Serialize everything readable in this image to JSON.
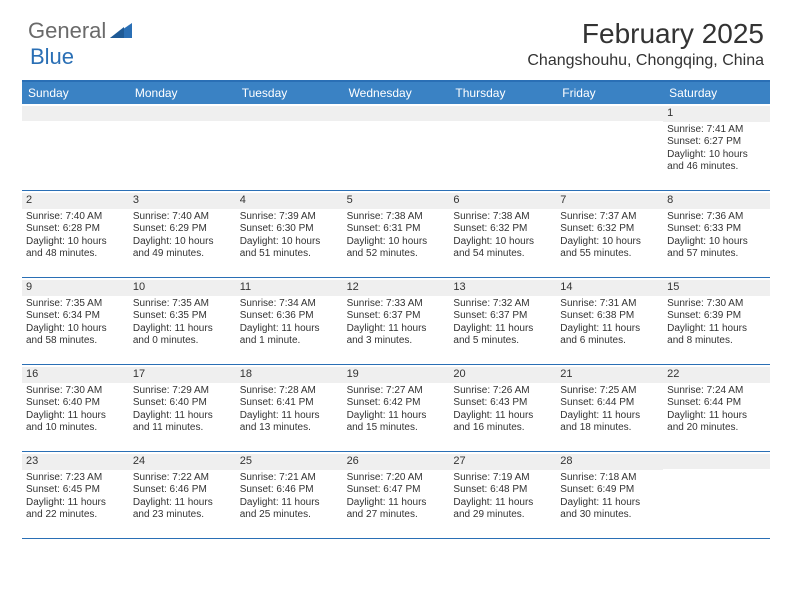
{
  "logo": {
    "part1": "General",
    "part2": "Blue"
  },
  "title": "February 2025",
  "location": "Changshouhu, Chongqing, China",
  "colors": {
    "header_bar": "#3a82c4",
    "rule": "#2a6fb5",
    "daynum_bg": "#efefef",
    "text": "#333333",
    "logo_gray": "#6a6a6a",
    "logo_blue": "#2a6fb5",
    "background": "#ffffff"
  },
  "typography": {
    "title_fontsize": 28,
    "location_fontsize": 16,
    "dow_fontsize": 12,
    "body_fontsize": 10
  },
  "days_of_week": [
    "Sunday",
    "Monday",
    "Tuesday",
    "Wednesday",
    "Thursday",
    "Friday",
    "Saturday"
  ],
  "weeks": [
    [
      {
        "n": "",
        "sr": "",
        "ss": "",
        "dl": ""
      },
      {
        "n": "",
        "sr": "",
        "ss": "",
        "dl": ""
      },
      {
        "n": "",
        "sr": "",
        "ss": "",
        "dl": ""
      },
      {
        "n": "",
        "sr": "",
        "ss": "",
        "dl": ""
      },
      {
        "n": "",
        "sr": "",
        "ss": "",
        "dl": ""
      },
      {
        "n": "",
        "sr": "",
        "ss": "",
        "dl": ""
      },
      {
        "n": "1",
        "sr": "Sunrise: 7:41 AM",
        "ss": "Sunset: 6:27 PM",
        "dl": "Daylight: 10 hours and 46 minutes."
      }
    ],
    [
      {
        "n": "2",
        "sr": "Sunrise: 7:40 AM",
        "ss": "Sunset: 6:28 PM",
        "dl": "Daylight: 10 hours and 48 minutes."
      },
      {
        "n": "3",
        "sr": "Sunrise: 7:40 AM",
        "ss": "Sunset: 6:29 PM",
        "dl": "Daylight: 10 hours and 49 minutes."
      },
      {
        "n": "4",
        "sr": "Sunrise: 7:39 AM",
        "ss": "Sunset: 6:30 PM",
        "dl": "Daylight: 10 hours and 51 minutes."
      },
      {
        "n": "5",
        "sr": "Sunrise: 7:38 AM",
        "ss": "Sunset: 6:31 PM",
        "dl": "Daylight: 10 hours and 52 minutes."
      },
      {
        "n": "6",
        "sr": "Sunrise: 7:38 AM",
        "ss": "Sunset: 6:32 PM",
        "dl": "Daylight: 10 hours and 54 minutes."
      },
      {
        "n": "7",
        "sr": "Sunrise: 7:37 AM",
        "ss": "Sunset: 6:32 PM",
        "dl": "Daylight: 10 hours and 55 minutes."
      },
      {
        "n": "8",
        "sr": "Sunrise: 7:36 AM",
        "ss": "Sunset: 6:33 PM",
        "dl": "Daylight: 10 hours and 57 minutes."
      }
    ],
    [
      {
        "n": "9",
        "sr": "Sunrise: 7:35 AM",
        "ss": "Sunset: 6:34 PM",
        "dl": "Daylight: 10 hours and 58 minutes."
      },
      {
        "n": "10",
        "sr": "Sunrise: 7:35 AM",
        "ss": "Sunset: 6:35 PM",
        "dl": "Daylight: 11 hours and 0 minutes."
      },
      {
        "n": "11",
        "sr": "Sunrise: 7:34 AM",
        "ss": "Sunset: 6:36 PM",
        "dl": "Daylight: 11 hours and 1 minute."
      },
      {
        "n": "12",
        "sr": "Sunrise: 7:33 AM",
        "ss": "Sunset: 6:37 PM",
        "dl": "Daylight: 11 hours and 3 minutes."
      },
      {
        "n": "13",
        "sr": "Sunrise: 7:32 AM",
        "ss": "Sunset: 6:37 PM",
        "dl": "Daylight: 11 hours and 5 minutes."
      },
      {
        "n": "14",
        "sr": "Sunrise: 7:31 AM",
        "ss": "Sunset: 6:38 PM",
        "dl": "Daylight: 11 hours and 6 minutes."
      },
      {
        "n": "15",
        "sr": "Sunrise: 7:30 AM",
        "ss": "Sunset: 6:39 PM",
        "dl": "Daylight: 11 hours and 8 minutes."
      }
    ],
    [
      {
        "n": "16",
        "sr": "Sunrise: 7:30 AM",
        "ss": "Sunset: 6:40 PM",
        "dl": "Daylight: 11 hours and 10 minutes."
      },
      {
        "n": "17",
        "sr": "Sunrise: 7:29 AM",
        "ss": "Sunset: 6:40 PM",
        "dl": "Daylight: 11 hours and 11 minutes."
      },
      {
        "n": "18",
        "sr": "Sunrise: 7:28 AM",
        "ss": "Sunset: 6:41 PM",
        "dl": "Daylight: 11 hours and 13 minutes."
      },
      {
        "n": "19",
        "sr": "Sunrise: 7:27 AM",
        "ss": "Sunset: 6:42 PM",
        "dl": "Daylight: 11 hours and 15 minutes."
      },
      {
        "n": "20",
        "sr": "Sunrise: 7:26 AM",
        "ss": "Sunset: 6:43 PM",
        "dl": "Daylight: 11 hours and 16 minutes."
      },
      {
        "n": "21",
        "sr": "Sunrise: 7:25 AM",
        "ss": "Sunset: 6:44 PM",
        "dl": "Daylight: 11 hours and 18 minutes."
      },
      {
        "n": "22",
        "sr": "Sunrise: 7:24 AM",
        "ss": "Sunset: 6:44 PM",
        "dl": "Daylight: 11 hours and 20 minutes."
      }
    ],
    [
      {
        "n": "23",
        "sr": "Sunrise: 7:23 AM",
        "ss": "Sunset: 6:45 PM",
        "dl": "Daylight: 11 hours and 22 minutes."
      },
      {
        "n": "24",
        "sr": "Sunrise: 7:22 AM",
        "ss": "Sunset: 6:46 PM",
        "dl": "Daylight: 11 hours and 23 minutes."
      },
      {
        "n": "25",
        "sr": "Sunrise: 7:21 AM",
        "ss": "Sunset: 6:46 PM",
        "dl": "Daylight: 11 hours and 25 minutes."
      },
      {
        "n": "26",
        "sr": "Sunrise: 7:20 AM",
        "ss": "Sunset: 6:47 PM",
        "dl": "Daylight: 11 hours and 27 minutes."
      },
      {
        "n": "27",
        "sr": "Sunrise: 7:19 AM",
        "ss": "Sunset: 6:48 PM",
        "dl": "Daylight: 11 hours and 29 minutes."
      },
      {
        "n": "28",
        "sr": "Sunrise: 7:18 AM",
        "ss": "Sunset: 6:49 PM",
        "dl": "Daylight: 11 hours and 30 minutes."
      },
      {
        "n": "",
        "sr": "",
        "ss": "",
        "dl": ""
      }
    ]
  ]
}
